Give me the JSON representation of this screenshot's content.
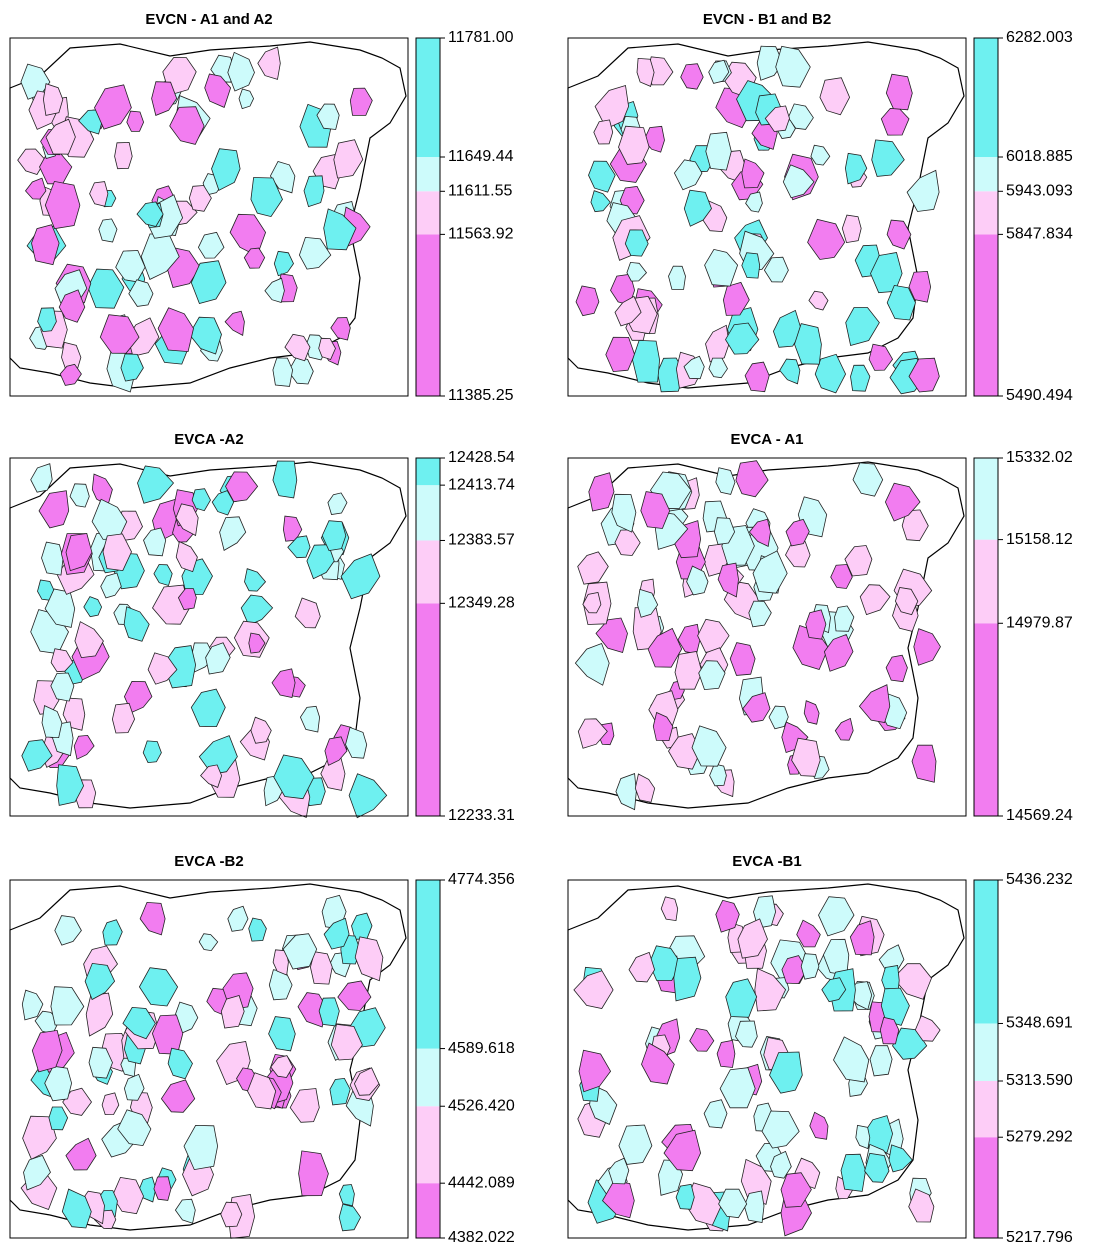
{
  "chart_data": [
    {
      "type": "map",
      "title": "EVCN - A1 and A2",
      "ylim": [
        11385.25,
        11781.0
      ],
      "yticks": [
        11385.25,
        11563.92,
        11611.55,
        11649.44,
        {
          "value": 11781.0,
          "label": "11781.00"
        }
      ],
      "colors": [
        "#f27df0",
        "#fdcdf7",
        "#cdfbfb",
        "#6ef0f0"
      ]
    },
    {
      "type": "map",
      "title": "EVCN - B1 and B2",
      "ylim": [
        5490.494,
        6282.003
      ],
      "yticks": [
        5490.494,
        5847.834,
        5943.093,
        6018.885,
        6282.003
      ],
      "colors": [
        "#f27df0",
        "#fdcdf7",
        "#cdfbfb",
        "#6ef0f0"
      ]
    },
    {
      "type": "map",
      "title": "EVCA -A2",
      "ylim": [
        12233.31,
        12428.54
      ],
      "yticks": [
        12233.31,
        12349.28,
        12383.57,
        12413.74,
        12428.54
      ],
      "colors": [
        "#f27df0",
        "#fdcdf7",
        "#cdfbfb",
        "#6ef0f0"
      ]
    },
    {
      "type": "map",
      "title": "EVCA - A1",
      "ylim": [
        14569.24,
        15332.02
      ],
      "yticks": [
        14569.24,
        14979.87,
        15158.12,
        15332.02
      ],
      "colors": [
        "#f27df0",
        "#fdcdf7",
        "#cdfbfb"
      ]
    },
    {
      "type": "map",
      "title": "EVCA -B2",
      "ylim": [
        4382.022,
        4774.356
      ],
      "yticks": [
        4382.022,
        4442.089,
        {
          "value": 4526.42,
          "label": "4526.420"
        },
        4589.618,
        4774.356
      ],
      "colors": [
        "#f27df0",
        "#fdcdf7",
        "#cdfbfb",
        "#6ef0f0"
      ]
    },
    {
      "type": "map",
      "title": "EVCA -B1",
      "ylim": [
        5217.796,
        5436.232
      ],
      "yticks": [
        5217.796,
        5279.292,
        {
          "value": 5313.59,
          "label": "5313.590"
        },
        5348.691,
        5436.232
      ],
      "colors": [
        "#f27df0",
        "#fdcdf7",
        "#cdfbfb",
        "#6ef0f0"
      ]
    }
  ]
}
